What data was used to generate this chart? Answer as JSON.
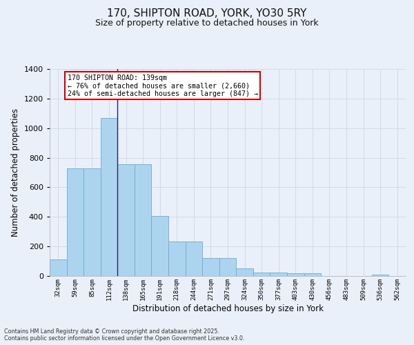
{
  "title1": "170, SHIPTON ROAD, YORK, YO30 5RY",
  "title2": "Size of property relative to detached houses in York",
  "xlabel": "Distribution of detached houses by size in York",
  "ylabel": "Number of detached properties",
  "annotation_line1": "170 SHIPTON ROAD: 139sqm",
  "annotation_line2": "← 76% of detached houses are smaller (2,660)",
  "annotation_line3": "24% of semi-detached houses are larger (847) →",
  "marker_index": 3.5,
  "categories": [
    "32sqm",
    "59sqm",
    "85sqm",
    "112sqm",
    "138sqm",
    "165sqm",
    "191sqm",
    "218sqm",
    "244sqm",
    "271sqm",
    "297sqm",
    "324sqm",
    "350sqm",
    "377sqm",
    "403sqm",
    "430sqm",
    "456sqm",
    "483sqm",
    "509sqm",
    "536sqm",
    "562sqm"
  ],
  "values": [
    110,
    730,
    730,
    1070,
    755,
    755,
    405,
    235,
    235,
    120,
    120,
    50,
    25,
    25,
    20,
    20,
    0,
    0,
    0,
    10,
    0
  ],
  "bar_color": "#add4ee",
  "bar_edge_color": "#6aaad4",
  "marker_color": "#222266",
  "grid_color": "#d0dae8",
  "bg_color": "#eaf0fa",
  "annotation_box_color": "#ffffff",
  "annotation_box_edge": "#cc0000",
  "footer1": "Contains HM Land Registry data © Crown copyright and database right 2025.",
  "footer2": "Contains public sector information licensed under the Open Government Licence v3.0.",
  "ylim": [
    0,
    1400
  ],
  "yticks": [
    0,
    200,
    400,
    600,
    800,
    1000,
    1200,
    1400
  ],
  "title1_fontsize": 11,
  "title2_fontsize": 9
}
